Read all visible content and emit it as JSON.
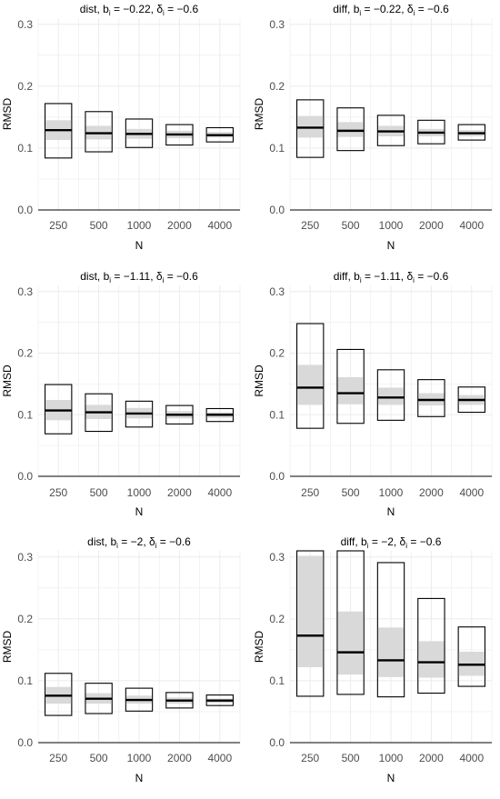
{
  "figure": {
    "ylabel": "RMSD",
    "xlabel": "N",
    "colors": {
      "box": "#000000",
      "inner": "#d9d9d9",
      "median": "#000000",
      "grid": "#ebebeb",
      "axis": "#000000",
      "text": "#4d4d4d"
    }
  },
  "chart_data": [
    {
      "type": "box",
      "title": {
        "method": "dist",
        "b_value": "−0.22",
        "delta_value": "−0.6"
      },
      "xlabel": "N",
      "ylabel": "RMSD",
      "categories": [
        "250",
        "500",
        "1000",
        "2000",
        "4000"
      ],
      "ylim": [
        0,
        0.31
      ],
      "yticks": [
        "0.0",
        "0.1",
        "0.2",
        "0.3"
      ],
      "boxes": [
        {
          "low": 0.084,
          "q1": 0.113,
          "median": 0.129,
          "q3": 0.145,
          "high": 0.172
        },
        {
          "low": 0.094,
          "q1": 0.114,
          "median": 0.124,
          "q3": 0.136,
          "high": 0.159
        },
        {
          "low": 0.101,
          "q1": 0.115,
          "median": 0.123,
          "q3": 0.131,
          "high": 0.147
        },
        {
          "low": 0.105,
          "q1": 0.116,
          "median": 0.122,
          "q3": 0.128,
          "high": 0.138
        },
        {
          "low": 0.11,
          "q1": 0.117,
          "median": 0.121,
          "q3": 0.126,
          "high": 0.133
        }
      ]
    },
    {
      "type": "box",
      "title": {
        "method": "diff",
        "b_value": "−0.22",
        "delta_value": "−0.6"
      },
      "xlabel": "N",
      "ylabel": "RMSD",
      "categories": [
        "250",
        "500",
        "1000",
        "2000",
        "4000"
      ],
      "ylim": [
        0,
        0.31
      ],
      "yticks": [
        "0.0",
        "0.1",
        "0.2",
        "0.3"
      ],
      "boxes": [
        {
          "low": 0.085,
          "q1": 0.117,
          "median": 0.133,
          "q3": 0.152,
          "high": 0.178
        },
        {
          "low": 0.096,
          "q1": 0.118,
          "median": 0.128,
          "q3": 0.142,
          "high": 0.165
        },
        {
          "low": 0.104,
          "q1": 0.119,
          "median": 0.127,
          "q3": 0.136,
          "high": 0.153
        },
        {
          "low": 0.107,
          "q1": 0.119,
          "median": 0.125,
          "q3": 0.131,
          "high": 0.145
        },
        {
          "low": 0.113,
          "q1": 0.119,
          "median": 0.124,
          "q3": 0.129,
          "high": 0.138
        }
      ]
    },
    {
      "type": "box",
      "title": {
        "method": "dist",
        "b_value": "−1.11",
        "delta_value": "−0.6"
      },
      "xlabel": "N",
      "ylabel": "RMSD",
      "categories": [
        "250",
        "500",
        "1000",
        "2000",
        "4000"
      ],
      "ylim": [
        0,
        0.31
      ],
      "yticks": [
        "0.0",
        "0.1",
        "0.2",
        "0.3"
      ],
      "boxes": [
        {
          "low": 0.069,
          "q1": 0.091,
          "median": 0.107,
          "q3": 0.124,
          "high": 0.149
        },
        {
          "low": 0.073,
          "q1": 0.093,
          "median": 0.104,
          "q3": 0.116,
          "high": 0.134
        },
        {
          "low": 0.08,
          "q1": 0.094,
          "median": 0.102,
          "q3": 0.111,
          "high": 0.122
        },
        {
          "low": 0.085,
          "q1": 0.094,
          "median": 0.1,
          "q3": 0.106,
          "high": 0.115
        },
        {
          "low": 0.089,
          "q1": 0.095,
          "median": 0.1,
          "q3": 0.104,
          "high": 0.11
        }
      ]
    },
    {
      "type": "box",
      "title": {
        "method": "diff",
        "b_value": "−1.11",
        "delta_value": "−0.6"
      },
      "xlabel": "N",
      "ylabel": "RMSD",
      "categories": [
        "250",
        "500",
        "1000",
        "2000",
        "4000"
      ],
      "ylim": [
        0,
        0.31
      ],
      "yticks": [
        "0.0",
        "0.1",
        "0.2",
        "0.3"
      ],
      "boxes": [
        {
          "low": 0.078,
          "q1": 0.116,
          "median": 0.144,
          "q3": 0.181,
          "high": 0.248
        },
        {
          "low": 0.086,
          "q1": 0.117,
          "median": 0.135,
          "q3": 0.161,
          "high": 0.206
        },
        {
          "low": 0.091,
          "q1": 0.116,
          "median": 0.128,
          "q3": 0.144,
          "high": 0.173
        },
        {
          "low": 0.097,
          "q1": 0.115,
          "median": 0.124,
          "q3": 0.135,
          "high": 0.157
        },
        {
          "low": 0.104,
          "q1": 0.116,
          "median": 0.124,
          "q3": 0.132,
          "high": 0.145
        }
      ]
    },
    {
      "type": "box",
      "title": {
        "method": "dist",
        "b_value": "−2",
        "delta_value": "−0.6"
      },
      "xlabel": "N",
      "ylabel": "RMSD",
      "categories": [
        "250",
        "500",
        "1000",
        "2000",
        "4000"
      ],
      "ylim": [
        0,
        0.31
      ],
      "yticks": [
        "0.0",
        "0.1",
        "0.2",
        "0.3"
      ],
      "boxes": [
        {
          "low": 0.044,
          "q1": 0.063,
          "median": 0.076,
          "q3": 0.09,
          "high": 0.112
        },
        {
          "low": 0.047,
          "q1": 0.063,
          "median": 0.071,
          "q3": 0.08,
          "high": 0.096
        },
        {
          "low": 0.051,
          "q1": 0.063,
          "median": 0.069,
          "q3": 0.076,
          "high": 0.088
        },
        {
          "low": 0.056,
          "q1": 0.063,
          "median": 0.068,
          "q3": 0.073,
          "high": 0.081
        },
        {
          "low": 0.06,
          "q1": 0.064,
          "median": 0.068,
          "q3": 0.071,
          "high": 0.077
        }
      ]
    },
    {
      "type": "box",
      "title": {
        "method": "diff",
        "b_value": "−2",
        "delta_value": "−0.6"
      },
      "xlabel": "N",
      "ylabel": "RMSD",
      "categories": [
        "250",
        "500",
        "1000",
        "2000",
        "4000"
      ],
      "ylim": [
        0,
        0.31
      ],
      "yticks": [
        "0.0",
        "0.1",
        "0.2",
        "0.3"
      ],
      "boxes": [
        {
          "low": 0.075,
          "q1": 0.122,
          "median": 0.173,
          "q3": 0.302,
          "high": 0.31
        },
        {
          "low": 0.078,
          "q1": 0.11,
          "median": 0.146,
          "q3": 0.212,
          "high": 0.31
        },
        {
          "low": 0.074,
          "q1": 0.106,
          "median": 0.133,
          "q3": 0.186,
          "high": 0.291
        },
        {
          "low": 0.08,
          "q1": 0.105,
          "median": 0.13,
          "q3": 0.164,
          "high": 0.233
        },
        {
          "low": 0.091,
          "q1": 0.108,
          "median": 0.126,
          "q3": 0.147,
          "high": 0.187
        }
      ]
    }
  ]
}
